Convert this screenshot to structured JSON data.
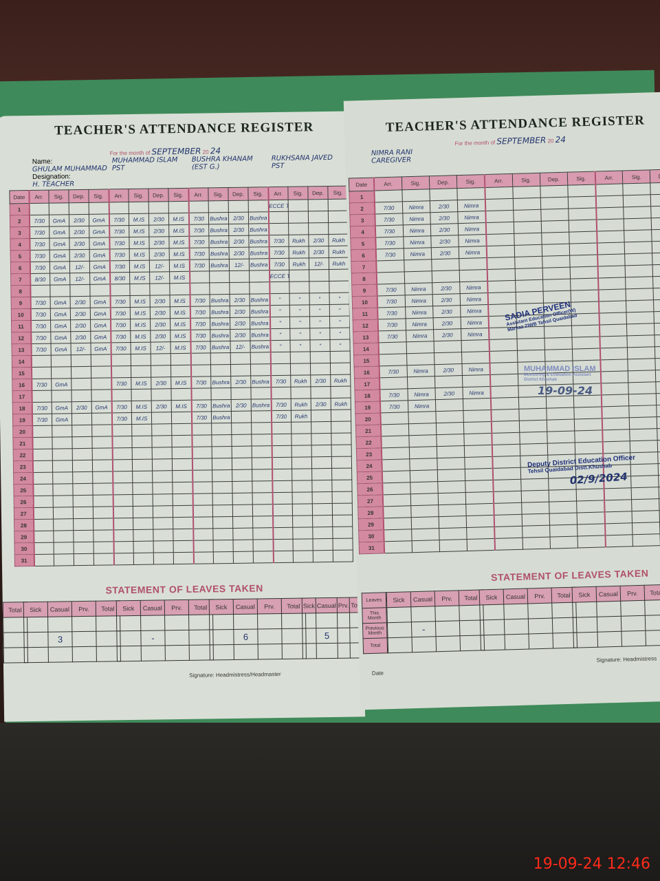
{
  "left_page": {
    "title": "TEACHER'S ATTENDANCE REGISTER",
    "month_label": "For the month of",
    "month": "SEPTEMBER",
    "year_label": "20",
    "year": "24",
    "name_label": "Name:",
    "designation_label": "Designation:",
    "date_header": "Date",
    "col_headers": [
      "Arr.",
      "Sig.",
      "Dep.",
      "Sig."
    ],
    "teachers": [
      {
        "name": "GHULAM MUHAMMAD",
        "designation": "H. TEACHER",
        "entries": {
          "2": [
            "7/30",
            "GmA",
            "2/30",
            "GmA"
          ],
          "3": [
            "7/30",
            "GmA",
            "2/30",
            "GmA"
          ],
          "4": [
            "7/30",
            "GmA",
            "2/30",
            "GmA"
          ],
          "5": [
            "7/30",
            "GmA",
            "2/30",
            "GmA"
          ],
          "6": [
            "7/30",
            "GmA",
            "12/-",
            "GmA"
          ],
          "7": [
            "8/30",
            "GmA",
            "12/-",
            "GmA"
          ],
          "9": [
            "7/30",
            "GmA",
            "2/30",
            "GmA"
          ],
          "10": [
            "7/30",
            "GmA",
            "2/30",
            "GmA"
          ],
          "11": [
            "7/30",
            "GmA",
            "2/30",
            "GmA"
          ],
          "12": [
            "7/30",
            "GmA",
            "2/30",
            "GmA"
          ],
          "13": [
            "7/30",
            "GmA",
            "12/-",
            "GmA"
          ],
          "16": [
            "7/30",
            "GmA",
            "",
            ""
          ],
          "18": [
            "7/30",
            "GmA",
            "2/30",
            "GmA"
          ],
          "19": [
            "7/30",
            "GmA",
            "",
            ""
          ]
        }
      },
      {
        "name": "MUHAMMAD ISLAM",
        "designation": "PST",
        "entries": {
          "2": [
            "7/30",
            "M.IS",
            "2/30",
            "M.IS"
          ],
          "3": [
            "7/30",
            "M.IS",
            "2/30",
            "M.IS"
          ],
          "4": [
            "7/30",
            "M.IS",
            "2/30",
            "M.IS"
          ],
          "5": [
            "7/30",
            "M.IS",
            "2/30",
            "M.IS"
          ],
          "6": [
            "7/30",
            "M.IS",
            "12/-",
            "M.IS"
          ],
          "7": [
            "8/30",
            "M.IS",
            "12/-",
            "M.IS"
          ],
          "9": [
            "7/30",
            "M.IS",
            "2/30",
            "M.IS"
          ],
          "10": [
            "7/30",
            "M.IS",
            "2/30",
            "M.IS"
          ],
          "11": [
            "7/30",
            "M.IS",
            "2/30",
            "M.IS"
          ],
          "12": [
            "7/30",
            "M.IS",
            "2/30",
            "M.IS"
          ],
          "13": [
            "7/30",
            "M.IS",
            "12/-",
            "M.IS"
          ],
          "16": [
            "7/30",
            "M.IS",
            "2/30",
            "M.IS"
          ],
          "18": [
            "7/30",
            "M.IS",
            "2/30",
            "M.IS"
          ],
          "19": [
            "7/30",
            "M.IS",
            "",
            ""
          ]
        }
      },
      {
        "name": "BUSHRA KHANAM",
        "designation": "(EST G.)",
        "entries": {
          "2": [
            "7/30",
            "Bushra",
            "2/30",
            "Bushra"
          ],
          "3": [
            "7/30",
            "Bushra",
            "2/30",
            "Bushra"
          ],
          "4": [
            "7/30",
            "Bushra",
            "2/30",
            "Bushra"
          ],
          "5": [
            "7/30",
            "Bushra",
            "2/30",
            "Bushra"
          ],
          "6": [
            "7/30",
            "Bushra",
            "12/-",
            "Bushra"
          ],
          "9": [
            "7/30",
            "Bushra",
            "2/30",
            "Bushra"
          ],
          "10": [
            "7/30",
            "Bushra",
            "2/30",
            "Bushra"
          ],
          "11": [
            "7/30",
            "Bushra",
            "2/30",
            "Bushra"
          ],
          "12": [
            "7/30",
            "Bushra",
            "2/30",
            "Bushra"
          ],
          "13": [
            "7/30",
            "Bushra",
            "12/-",
            "Bushra"
          ],
          "16": [
            "7/30",
            "Bushra",
            "2/30",
            "Bushra"
          ],
          "18": [
            "7/30",
            "Bushra",
            "2/30",
            "Bushra"
          ],
          "19": [
            "7/30",
            "Bushra",
            "",
            ""
          ]
        }
      },
      {
        "name": "RUKHSANA JAVED",
        "designation": "PST",
        "entries": {
          "1": [
            "ECCE Training",
            "",
            "",
            ""
          ],
          "4": [
            "7/30",
            "Rukh",
            "2/30",
            "Rukh"
          ],
          "5": [
            "7/30",
            "Rukh",
            "2/30",
            "Rukh"
          ],
          "6": [
            "7/30",
            "Rukh",
            "12/-",
            "Rukh"
          ],
          "7": [
            "ECCE Training",
            "",
            "",
            ""
          ],
          "9": [
            "\"",
            "\"",
            "\"",
            "\""
          ],
          "10": [
            "\"",
            "\"",
            "\"",
            "\""
          ],
          "11": [
            "\"",
            "\"",
            "\"",
            "\""
          ],
          "12": [
            "\"",
            "\"",
            "\"",
            "\""
          ],
          "13": [
            "\"",
            "\"",
            "\"",
            "\""
          ],
          "16": [
            "7/30",
            "Rukh",
            "2/30",
            "Rukh"
          ],
          "18": [
            "7/30",
            "Rukh",
            "2/30",
            "Rukh"
          ],
          "19": [
            "7/30",
            "Rukh",
            "",
            ""
          ]
        }
      }
    ],
    "leaves": {
      "title": "STATEMENT OF LEAVES TAKEN",
      "headers": [
        "Sick",
        "Casual",
        "Prv.",
        "Total"
      ],
      "values": [
        [
          "",
          "",
          "",
          ""
        ],
        [
          "",
          "3",
          "",
          ""
        ],
        [
          "",
          "-",
          "",
          ""
        ],
        [
          "",
          "6",
          "",
          ""
        ],
        [
          "",
          "5",
          "",
          ""
        ]
      ]
    },
    "signature_label": "Signature: Headmistress/Headmaster"
  },
  "right_page": {
    "title": "TEACHER'S ATTENDANCE REGISTER",
    "month_label": "For the month of",
    "month": "SEPTEMBER",
    "year_label": "20",
    "year": "24",
    "date_header": "Date",
    "col_headers": [
      "Arr.",
      "Sig.",
      "Dep.",
      "Sig."
    ],
    "teachers": [
      {
        "name": "NIMRA RANI",
        "designation": "CAREGIVER",
        "entries": {
          "2": [
            "7/30",
            "Nimra",
            "2/30",
            "Nimra"
          ],
          "3": [
            "7/30",
            "Nimra",
            "2/30",
            "Nimra"
          ],
          "4": [
            "7/30",
            "Nimra",
            "2/30",
            "Nimra"
          ],
          "5": [
            "7/30",
            "Nimra",
            "2/30",
            "Nimra"
          ],
          "6": [
            "7/30",
            "Nimra",
            "2/30",
            "Nimra"
          ],
          "9": [
            "7/30",
            "Nimra",
            "2/30",
            "Nimra"
          ],
          "10": [
            "7/30",
            "Nimra",
            "2/30",
            "Nimra"
          ],
          "11": [
            "7/30",
            "Nimra",
            "2/30",
            "Nimra"
          ],
          "12": [
            "7/30",
            "Nimra",
            "2/30",
            "Nimra"
          ],
          "13": [
            "7/30",
            "Nimra",
            "2/30",
            "Nimra"
          ],
          "16": [
            "7/30",
            "Nimra",
            "2/30",
            "Nimra"
          ],
          "18": [
            "7/30",
            "Nimra",
            "2/30",
            "Nimra"
          ],
          "19": [
            "7/30",
            "Nimra",
            "",
            ""
          ]
        }
      },
      {
        "name": "",
        "designation": "",
        "entries": {}
      },
      {
        "name": "",
        "designation": "",
        "entries": {}
      }
    ],
    "leaves": {
      "title": "STATEMENT OF LEAVES TAKEN",
      "row_labels": [
        "Leaves",
        "This Month",
        "Previous Month",
        "Total"
      ],
      "headers": [
        "Sick",
        "Casual",
        "Prv.",
        "Total"
      ],
      "values": [
        [
          "",
          "-",
          "",
          ""
        ],
        [
          "",
          "",
          "",
          ""
        ],
        [
          "",
          "",
          "",
          ""
        ]
      ]
    },
    "date_label": "Date",
    "signature_label": "Signature: Headmistress"
  },
  "stamps": [
    {
      "name": "SADIA PERVEEN",
      "line1": "Assistant Education Officer(W)",
      "line2": "Markaz ZIWB Tehsil Quaidabad"
    },
    {
      "name": "MUHAMMAD ISLAM",
      "line1": "Monitoring & Evaluation Assistant",
      "line2": "District Khushab",
      "date": "19-09-24"
    },
    {
      "name": "Deputy District Education Officer",
      "line1": "Tehsil Quaidabad Distt.Khushab",
      "date": "02/9/2024"
    }
  ],
  "camera_timestamp": "19-09-24  12:46",
  "colors": {
    "paper": "#d9dfd6",
    "pink_header": "#d99bb0",
    "ink": "#23336e",
    "cover": "#3f8a5a",
    "timestamp": "#ff2a1a"
  }
}
